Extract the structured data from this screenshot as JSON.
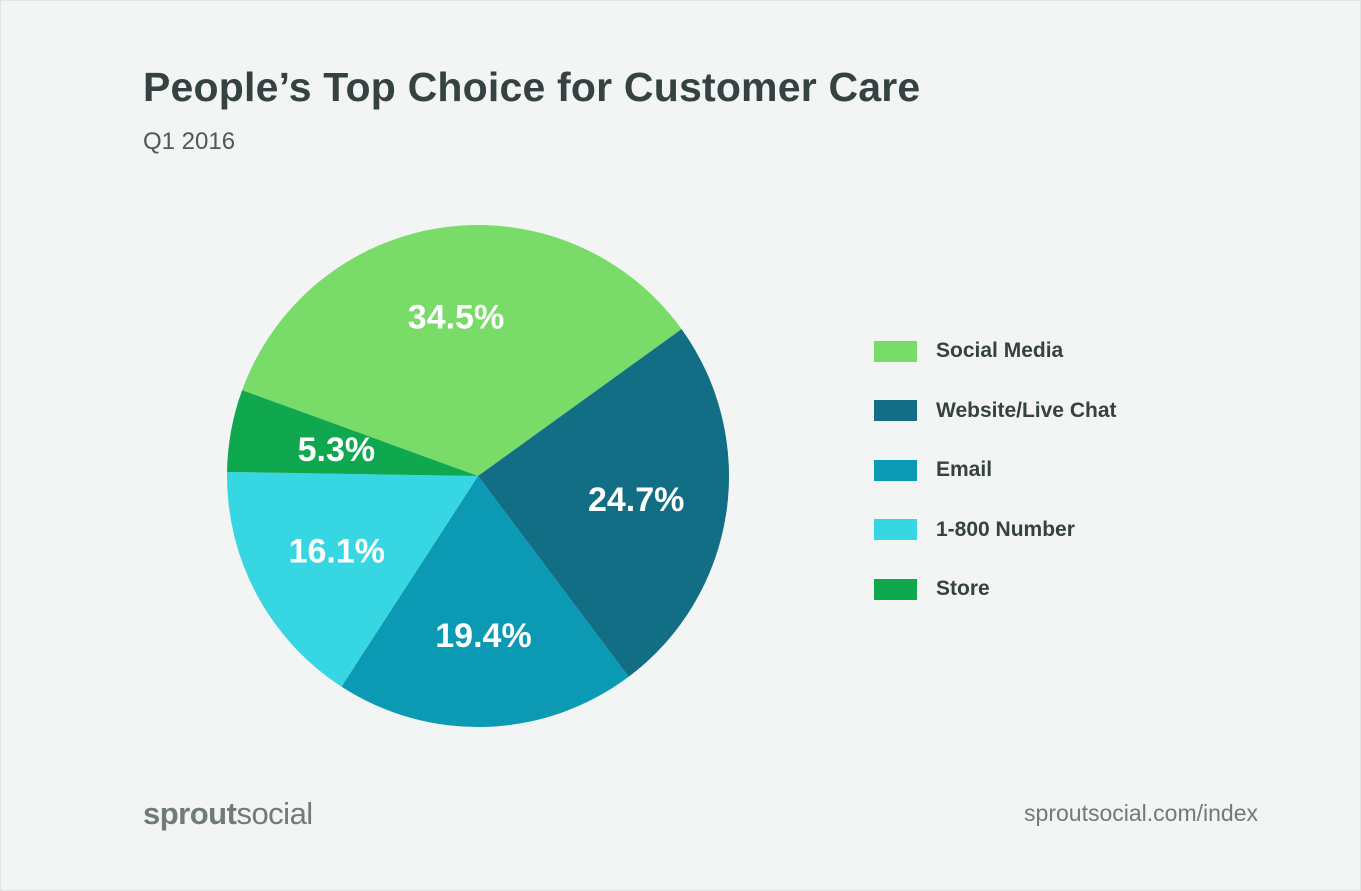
{
  "header": {
    "title": "People’s Top Choice for Customer Care",
    "subtitle": "Q1 2016"
  },
  "chart_data": {
    "type": "pie",
    "title": "People’s Top Choice for Customer Care",
    "subtitle": "Q1 2016",
    "legend_position": "right",
    "slices": [
      {
        "label": "Social Media",
        "value": 34.5,
        "display": "34.5%",
        "color": "#79dc68"
      },
      {
        "label": "Website/Live Chat",
        "value": 24.7,
        "display": "24.7%",
        "color": "#126e84"
      },
      {
        "label": "Email",
        "value": 19.4,
        "display": "19.4%",
        "color": "#0b99b3"
      },
      {
        "label": "1-800 Number",
        "value": 16.1,
        "display": "16.1%",
        "color": "#36d7e3"
      },
      {
        "label": "Store",
        "value": 5.3,
        "display": "5.3%",
        "color": "#0fa84f"
      }
    ]
  },
  "legend": {
    "items": [
      {
        "label": "Social Media",
        "color": "#79dc68"
      },
      {
        "label": "Website/Live Chat",
        "color": "#126e84"
      },
      {
        "label": "Email",
        "color": "#0b99b3"
      },
      {
        "label": "1-800 Number",
        "color": "#36d7e3"
      },
      {
        "label": "Store",
        "color": "#0fa84f"
      }
    ]
  },
  "footer": {
    "brand_bold": "sprout",
    "brand_regular": "social",
    "url": "sproutsocial.com/index"
  }
}
